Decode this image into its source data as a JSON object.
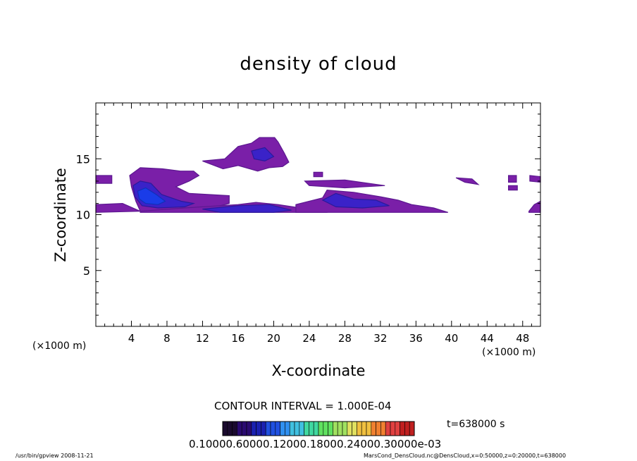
{
  "chart_data": {
    "type": "heatmap",
    "title": "density of cloud",
    "xlabel": "X-coordinate",
    "ylabel": "Z-coordinate",
    "x_unit_label": "(×1000 m)",
    "xlim": [
      0,
      50
    ],
    "ylim": [
      0,
      20
    ],
    "x_ticks": [
      4,
      8,
      12,
      16,
      20,
      24,
      28,
      32,
      36,
      40,
      44,
      48
    ],
    "y_ticks": [
      5,
      10,
      15
    ],
    "contour_interval_text": "CONTOUR INTERVAL = 1.000E-04",
    "time_text": "t=638000 s",
    "colorbar": {
      "label_text": "0.10000.60000.12000.18000.24000.30000e-03",
      "colors": [
        "#1a0a2e",
        "#2a0a70",
        "#1a20b0",
        "#2050e0",
        "#3090f0",
        "#40c0e0",
        "#40d8a0",
        "#60e060",
        "#a0e060",
        "#e0e060",
        "#f0c040",
        "#f08030",
        "#e04040",
        "#c02020"
      ]
    },
    "footer_left": "/usr/bin/gpview  2008-11-21",
    "footer_right": "MarsCond_DensCloud.nc@DensCloud,x=0:50000,z=0:20000,t=638000",
    "regions": [
      {
        "level": "low",
        "poly": [
          [
            0,
            13.5
          ],
          [
            1.8,
            13.5
          ],
          [
            1.8,
            12.8
          ],
          [
            0,
            12.8
          ]
        ]
      },
      {
        "level": "low",
        "poly": [
          [
            3.8,
            13.5
          ],
          [
            5,
            14.2
          ],
          [
            7.5,
            14.1
          ],
          [
            9.5,
            13.9
          ],
          [
            11,
            13.9
          ],
          [
            11.6,
            13.5
          ],
          [
            10.5,
            13.0
          ],
          [
            9,
            12.5
          ],
          [
            10.5,
            11.9
          ],
          [
            15,
            11.7
          ],
          [
            15,
            11.0
          ],
          [
            13,
            10.6
          ],
          [
            9,
            10.4
          ],
          [
            5,
            10.3
          ],
          [
            4.5,
            11.2
          ],
          [
            4,
            12.5
          ]
        ]
      },
      {
        "level": "mid",
        "poly": [
          [
            4.2,
            12.6
          ],
          [
            5,
            13.0
          ],
          [
            6.2,
            12.8
          ],
          [
            7.4,
            11.8
          ],
          [
            9.6,
            11.2
          ],
          [
            11,
            11.0
          ],
          [
            10,
            10.7
          ],
          [
            7,
            10.6
          ],
          [
            5.2,
            10.8
          ],
          [
            4.4,
            11.6
          ]
        ]
      },
      {
        "level": "high",
        "poly": [
          [
            4.7,
            12.1
          ],
          [
            5.6,
            12.4
          ],
          [
            6.8,
            11.8
          ],
          [
            7.8,
            11.2
          ],
          [
            7,
            10.9
          ],
          [
            5.6,
            11.0
          ],
          [
            4.9,
            11.4
          ]
        ]
      },
      {
        "level": "low",
        "poly": [
          [
            0,
            10.9
          ],
          [
            3,
            11.0
          ],
          [
            5,
            10.3
          ],
          [
            0,
            10.2
          ]
        ]
      },
      {
        "level": "low",
        "poly": [
          [
            5,
            10.3
          ],
          [
            10,
            10.6
          ],
          [
            16,
            10.9
          ],
          [
            18,
            11.1
          ],
          [
            20.5,
            10.9
          ],
          [
            23,
            10.6
          ],
          [
            26,
            10.4
          ],
          [
            26,
            10.2
          ],
          [
            5,
            10.2
          ]
        ]
      },
      {
        "level": "mid",
        "poly": [
          [
            12,
            10.5
          ],
          [
            16,
            10.8
          ],
          [
            19.5,
            10.9
          ],
          [
            22,
            10.4
          ],
          [
            20,
            10.2
          ],
          [
            14,
            10.2
          ]
        ]
      },
      {
        "level": "low",
        "poly": [
          [
            22.5,
            10.9
          ],
          [
            25.5,
            11.5
          ],
          [
            26,
            12.2
          ],
          [
            29,
            12.0
          ],
          [
            32,
            11.6
          ],
          [
            34,
            11.3
          ],
          [
            35.5,
            10.9
          ],
          [
            38,
            10.6
          ],
          [
            39.6,
            10.2
          ],
          [
            22.5,
            10.2
          ]
        ]
      },
      {
        "level": "mid",
        "poly": [
          [
            25.5,
            11.3
          ],
          [
            27,
            11.9
          ],
          [
            29,
            11.4
          ],
          [
            31.5,
            11.3
          ],
          [
            33,
            10.8
          ],
          [
            30,
            10.6
          ],
          [
            27,
            10.7
          ]
        ]
      },
      {
        "level": "low",
        "poly": [
          [
            23.5,
            13.0
          ],
          [
            28,
            13.1
          ],
          [
            32.5,
            12.6
          ],
          [
            28,
            12.4
          ],
          [
            24,
            12.6
          ]
        ]
      },
      {
        "level": "low",
        "poly": [
          [
            14.5,
            15.0
          ],
          [
            16,
            16.1
          ],
          [
            17.5,
            16.4
          ],
          [
            18.4,
            16.9
          ],
          [
            20.1,
            16.9
          ],
          [
            20.5,
            16.5
          ],
          [
            21.2,
            15.5
          ],
          [
            21.7,
            14.7
          ],
          [
            21,
            14.3
          ],
          [
            19.5,
            14.2
          ],
          [
            18.2,
            13.9
          ],
          [
            16,
            14.4
          ],
          [
            14.3,
            14.1
          ],
          [
            12,
            14.8
          ]
        ]
      },
      {
        "level": "mid",
        "poly": [
          [
            17.5,
            15.7
          ],
          [
            19,
            16.0
          ],
          [
            20,
            15.2
          ],
          [
            19,
            14.8
          ],
          [
            17.8,
            15.0
          ]
        ]
      },
      {
        "level": "low",
        "poly": [
          [
            24.5,
            13.8
          ],
          [
            25.5,
            13.8
          ],
          [
            25.5,
            13.4
          ],
          [
            24.5,
            13.4
          ]
        ]
      },
      {
        "level": "low",
        "poly": [
          [
            40.5,
            13.3
          ],
          [
            42.3,
            13.2
          ],
          [
            43,
            12.7
          ],
          [
            41.5,
            12.9
          ]
        ]
      },
      {
        "level": "low",
        "poly": [
          [
            46.4,
            13.5
          ],
          [
            47.3,
            13.5
          ],
          [
            47.3,
            12.9
          ],
          [
            46.4,
            12.9
          ]
        ]
      },
      {
        "level": "low",
        "poly": [
          [
            48.8,
            13.5
          ],
          [
            50,
            13.4
          ],
          [
            50,
            12.9
          ],
          [
            48.8,
            13.0
          ]
        ]
      },
      {
        "level": "low",
        "poly": [
          [
            46.4,
            12.6
          ],
          [
            47.4,
            12.6
          ],
          [
            47.4,
            12.2
          ],
          [
            46.4,
            12.2
          ]
        ]
      },
      {
        "level": "low",
        "poly": [
          [
            48.7,
            10.3
          ],
          [
            49.3,
            10.9
          ],
          [
            50,
            11.2
          ],
          [
            50,
            10.2
          ],
          [
            48.7,
            10.2
          ]
        ]
      }
    ],
    "level_colors": {
      "low": "#7a1fa8",
      "mid": "#3a22c8",
      "high": "#1a3ce8"
    },
    "level_edges": {
      "low": "#5c1890",
      "mid": "#2a1a9a",
      "high": "#1030b8"
    }
  }
}
